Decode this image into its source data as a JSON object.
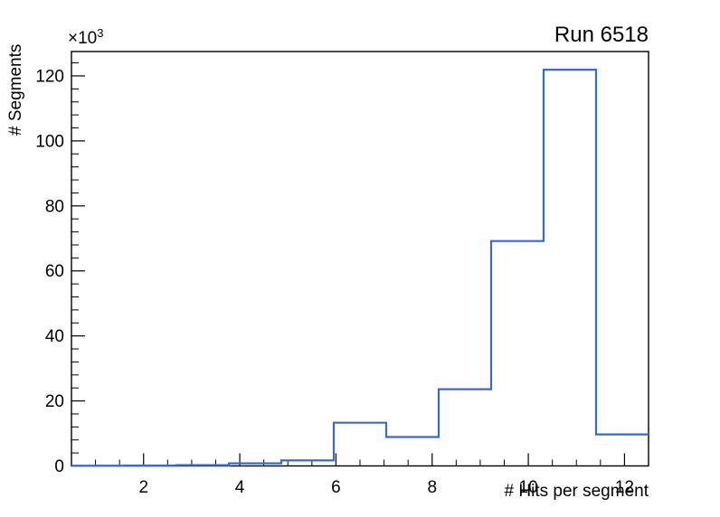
{
  "page": {
    "background_color": "#ffffff"
  },
  "chart_data": {
    "type": "histogram",
    "title": "Run 6518",
    "xlabel": "# Hits per segment",
    "ylabel": "# Segments",
    "y_axis_multiplier_base": "×10",
    "y_axis_multiplier_exp": "3",
    "x_range": [
      0.5,
      12.5
    ],
    "y_range_counts": [
      0,
      127500
    ],
    "x_major_ticks": [
      2,
      4,
      6,
      8,
      10,
      12
    ],
    "x_minor_tick_step": 0.5,
    "y_major_ticks_thousands": [
      0,
      20,
      40,
      60,
      80,
      100,
      120
    ],
    "y_minor_tick_step_thousands": 4,
    "bin_edges": [
      0.5,
      1.5909,
      2.6818,
      3.7727,
      4.8636,
      5.9545,
      7.0455,
      8.1364,
      9.2273,
      10.3182,
      11.4091,
      12.5
    ],
    "counts": [
      80,
      120,
      250,
      800,
      1700,
      13300,
      8900,
      23600,
      69200,
      121900,
      9700
    ],
    "line_color": "#3c69c7",
    "frame_color": "#000000",
    "grid": "off",
    "legend": "none"
  }
}
